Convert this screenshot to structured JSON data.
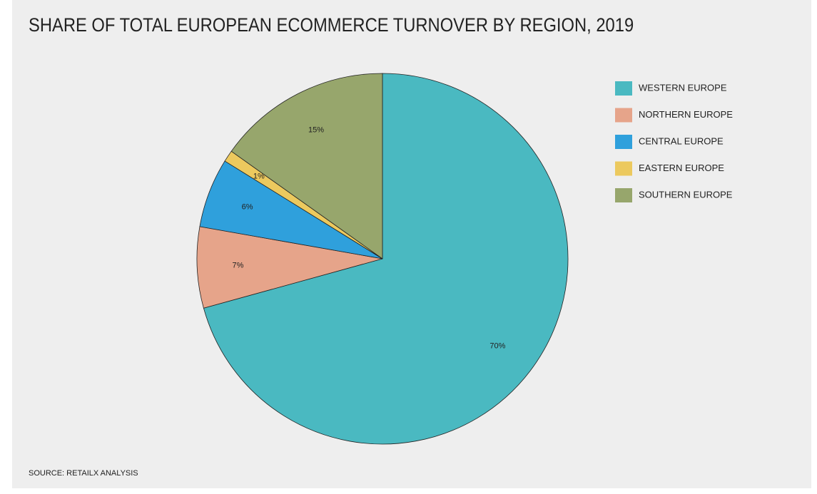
{
  "chart_data": {
    "type": "pie",
    "title": "SHARE OF TOTAL EUROPEAN ECOMMERCE TURNOVER BY REGION, 2019",
    "categories": [
      "WESTERN EUROPE",
      "NORTHERN EUROPE",
      "CENTRAL EUROPE",
      "EASTERN EUROPE",
      "SOUTHERN EUROPE"
    ],
    "values": [
      70,
      7,
      6,
      1,
      15
    ],
    "value_labels": [
      "70%",
      "7%",
      "6%",
      "1%",
      "15%"
    ],
    "colors": [
      "#4ab9c1",
      "#e6a48a",
      "#2fa0dc",
      "#ecc95e",
      "#97a66c"
    ],
    "legend": "right",
    "source": "SOURCE: RETAILX ANALYSIS"
  }
}
